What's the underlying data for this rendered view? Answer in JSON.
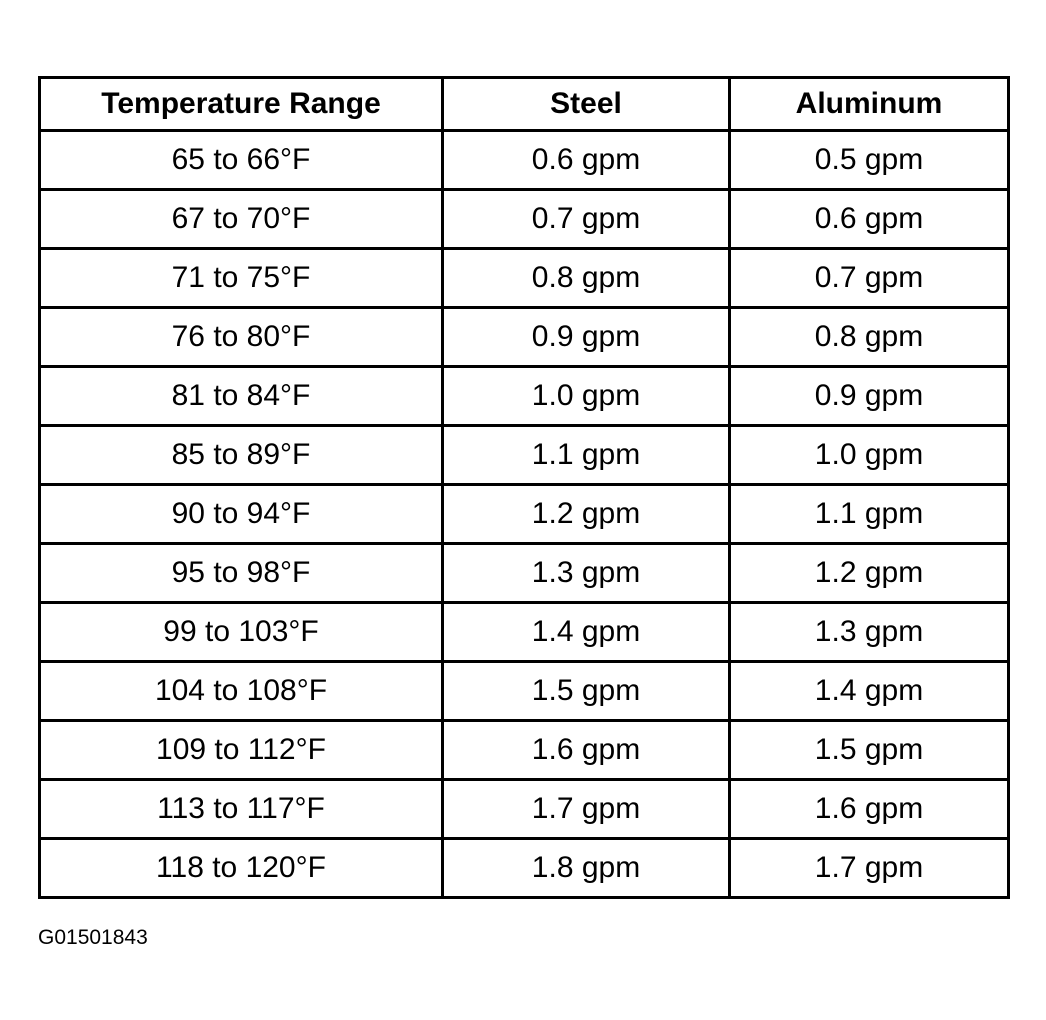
{
  "table": {
    "header": [
      "Temperature Range",
      "Steel",
      "Aluminum"
    ],
    "rows": [
      [
        "65 to 66°F",
        "0.6 gpm",
        "0.5 gpm"
      ],
      [
        "67 to 70°F",
        "0.7 gpm",
        "0.6 gpm"
      ],
      [
        "71 to 75°F",
        "0.8 gpm",
        "0.7 gpm"
      ],
      [
        "76 to 80°F",
        "0.9 gpm",
        "0.8 gpm"
      ],
      [
        "81 to 84°F",
        "1.0 gpm",
        "0.9 gpm"
      ],
      [
        "85 to 89°F",
        "1.1 gpm",
        "1.0 gpm"
      ],
      [
        "90 to 94°F",
        "1.2 gpm",
        "1.1 gpm"
      ],
      [
        "95 to 98°F",
        "1.3 gpm",
        "1.2 gpm"
      ],
      [
        "99 to 103°F",
        "1.4 gpm",
        "1.3 gpm"
      ],
      [
        "104 to 108°F",
        "1.5 gpm",
        "1.4 gpm"
      ],
      [
        "109 to 112°F",
        "1.6 gpm",
        "1.5 gpm"
      ],
      [
        "113 to 117°F",
        "1.7 gpm",
        "1.6 gpm"
      ],
      [
        "118 to 120°F",
        "1.8 gpm",
        "1.7 gpm"
      ]
    ]
  },
  "footer": {
    "code": "G01501843"
  }
}
